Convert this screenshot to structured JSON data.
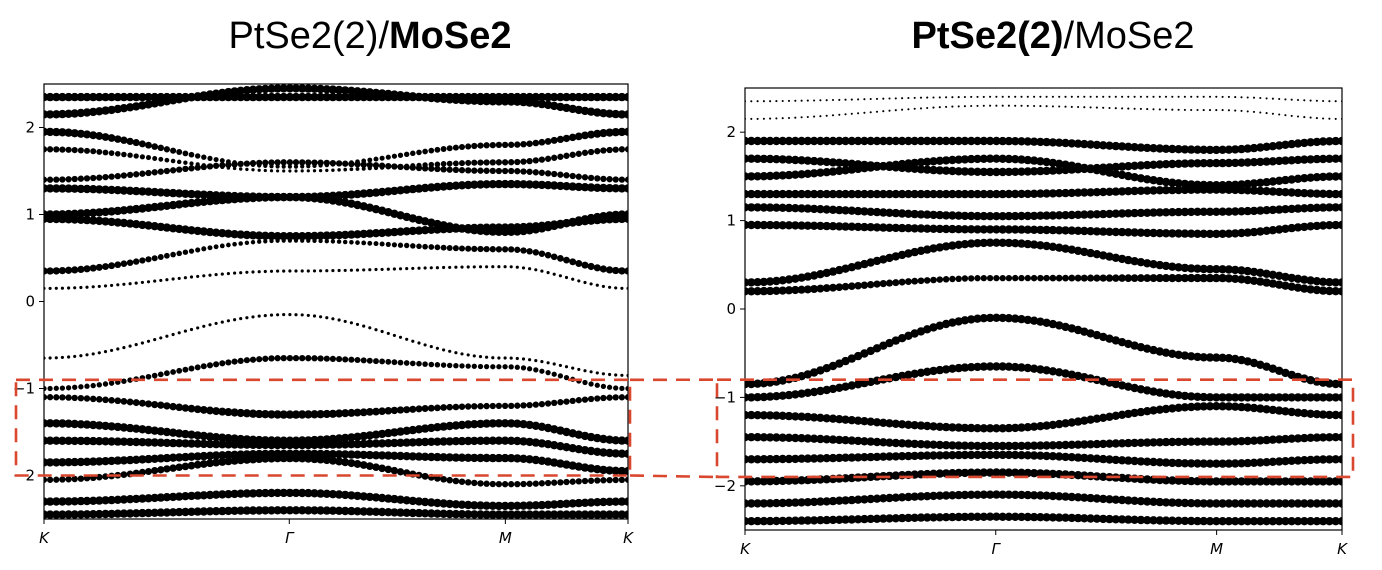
{
  "figure": {
    "highlight_color": "#d9472f",
    "band_color": "#000000"
  },
  "chart_data": [
    {
      "type": "scatter",
      "description_kind": "band structure (fat bands)",
      "title_parts": [
        {
          "text": "PtSe2(2)/",
          "bold": false
        },
        {
          "text": "MoSe2",
          "bold": true
        }
      ],
      "xticks": [
        "K",
        "Γ",
        "M",
        "K"
      ],
      "xtick_positions": [
        0,
        0.42,
        0.79,
        1
      ],
      "ylim": [
        -2.5,
        2.5
      ],
      "yticks": [
        -2,
        -1,
        0,
        1,
        2
      ],
      "yticklabels": [
        "−2",
        "−1",
        "0",
        "1",
        "2"
      ],
      "xlabel": "",
      "ylabel": "",
      "highlight_energy_range": [
        -2.0,
        -0.9
      ],
      "bands": [
        {
          "e": [
            2.35,
            2.35,
            2.35,
            2.35
          ],
          "w": [
            4,
            4,
            4,
            4
          ]
        },
        {
          "e": [
            2.15,
            2.45,
            2.3,
            2.15
          ],
          "w": [
            4,
            4,
            4,
            4
          ]
        },
        {
          "e": [
            1.95,
            1.55,
            1.8,
            1.95
          ],
          "w": [
            4,
            2,
            3,
            4
          ]
        },
        {
          "e": [
            1.75,
            1.5,
            1.6,
            1.75
          ],
          "w": [
            3,
            1.5,
            3,
            3
          ]
        },
        {
          "e": [
            1.4,
            1.6,
            1.5,
            1.4
          ],
          "w": [
            3,
            3,
            3,
            3
          ]
        },
        {
          "e": [
            1.3,
            1.2,
            1.35,
            1.3
          ],
          "w": [
            4,
            4,
            4,
            4
          ]
        },
        {
          "e": [
            1.0,
            1.2,
            0.8,
            1.0
          ],
          "w": [
            4,
            4,
            4,
            4
          ]
        },
        {
          "e": [
            0.95,
            0.75,
            0.85,
            0.95
          ],
          "w": [
            4,
            4,
            4,
            4
          ]
        },
        {
          "e": [
            0.35,
            0.7,
            0.6,
            0.35
          ],
          "w": [
            3.5,
            2,
            3,
            3.5
          ]
        },
        {
          "e": [
            0.15,
            0.35,
            0.4,
            0.15
          ],
          "w": [
            1.5,
            1.5,
            1.5,
            1.5
          ]
        },
        {
          "e": [
            -0.65,
            -0.15,
            -0.65,
            -0.85
          ],
          "w": [
            1.5,
            1.5,
            1.5,
            1.5
          ]
        },
        {
          "e": [
            -1.0,
            -0.65,
            -0.75,
            -1.0
          ],
          "w": [
            2.5,
            3,
            2.5,
            2.5
          ]
        },
        {
          "e": [
            -1.1,
            -1.3,
            -1.2,
            -1.1
          ],
          "w": [
            3,
            4,
            3,
            3
          ]
        },
        {
          "e": [
            -1.4,
            -1.6,
            -1.4,
            -1.6
          ],
          "w": [
            4,
            4,
            4,
            4
          ]
        },
        {
          "e": [
            -1.6,
            -1.65,
            -1.6,
            -1.75
          ],
          "w": [
            4,
            4,
            4,
            4
          ]
        },
        {
          "e": [
            -1.85,
            -1.75,
            -1.8,
            -1.95
          ],
          "w": [
            4,
            4,
            4,
            4
          ]
        },
        {
          "e": [
            -2.05,
            -1.8,
            -2.1,
            -2.05
          ],
          "w": [
            3,
            4,
            3,
            3
          ]
        },
        {
          "e": [
            -2.3,
            -2.2,
            -2.35,
            -2.3
          ],
          "w": [
            4,
            4,
            4,
            4
          ]
        },
        {
          "e": [
            -2.45,
            -2.4,
            -2.45,
            -2.45
          ],
          "w": [
            4,
            4,
            4,
            4
          ]
        }
      ]
    },
    {
      "type": "scatter",
      "description_kind": "band structure (fat bands)",
      "title_parts": [
        {
          "text": "PtSe2(2)",
          "bold": true
        },
        {
          "text": "/MoSe2",
          "bold": false
        }
      ],
      "xticks": [
        "K",
        "Γ",
        "M",
        "K"
      ],
      "xtick_positions": [
        0,
        0.42,
        0.79,
        1
      ],
      "ylim": [
        -2.5,
        2.5
      ],
      "yticks": [
        -2,
        -1,
        0,
        1,
        2
      ],
      "yticklabels": [
        "−2",
        "−1",
        "0",
        "1",
        "2"
      ],
      "xlabel": "",
      "ylabel": "",
      "highlight_energy_range": [
        -1.9,
        -0.8
      ],
      "bands": [
        {
          "e": [
            2.35,
            2.4,
            2.4,
            2.35
          ],
          "w": [
            1,
            1,
            1,
            1
          ]
        },
        {
          "e": [
            2.15,
            2.3,
            2.25,
            2.15
          ],
          "w": [
            1,
            1,
            1,
            1
          ]
        },
        {
          "e": [
            1.9,
            1.9,
            1.8,
            1.9
          ],
          "w": [
            4,
            4,
            4,
            4
          ]
        },
        {
          "e": [
            1.7,
            1.55,
            1.65,
            1.7
          ],
          "w": [
            4,
            4,
            4,
            4
          ]
        },
        {
          "e": [
            1.5,
            1.7,
            1.4,
            1.5
          ],
          "w": [
            4,
            4,
            4,
            4
          ]
        },
        {
          "e": [
            1.3,
            1.3,
            1.35,
            1.3
          ],
          "w": [
            4,
            4,
            4,
            4
          ]
        },
        {
          "e": [
            1.15,
            1.05,
            1.1,
            1.15
          ],
          "w": [
            4,
            4,
            4,
            4
          ]
        },
        {
          "e": [
            0.95,
            0.9,
            0.85,
            0.95
          ],
          "w": [
            4,
            4,
            4,
            4
          ]
        },
        {
          "e": [
            0.3,
            0.75,
            0.45,
            0.3
          ],
          "w": [
            4,
            4,
            4,
            4
          ]
        },
        {
          "e": [
            0.2,
            0.35,
            0.35,
            0.2
          ],
          "w": [
            4,
            3,
            4,
            4
          ]
        },
        {
          "e": [
            -0.85,
            -0.1,
            -0.55,
            -0.85
          ],
          "w": [
            4,
            4,
            4,
            4
          ]
        },
        {
          "e": [
            -1.0,
            -0.65,
            -1.0,
            -1.0
          ],
          "w": [
            4,
            4,
            4,
            4
          ]
        },
        {
          "e": [
            -1.2,
            -1.35,
            -1.1,
            -1.2
          ],
          "w": [
            4,
            4,
            4,
            4
          ]
        },
        {
          "e": [
            -1.45,
            -1.55,
            -1.5,
            -1.45
          ],
          "w": [
            4,
            4,
            4,
            4
          ]
        },
        {
          "e": [
            -1.7,
            -1.65,
            -1.75,
            -1.7
          ],
          "w": [
            4,
            4,
            4,
            4
          ]
        },
        {
          "e": [
            -1.95,
            -1.85,
            -1.95,
            -1.95
          ],
          "w": [
            4,
            4,
            4,
            4
          ]
        },
        {
          "e": [
            -2.2,
            -2.1,
            -2.2,
            -2.2
          ],
          "w": [
            4,
            4,
            4,
            4
          ]
        },
        {
          "e": [
            -2.4,
            -2.35,
            -2.4,
            -2.4
          ],
          "w": [
            4,
            4,
            4,
            4
          ]
        }
      ]
    }
  ]
}
